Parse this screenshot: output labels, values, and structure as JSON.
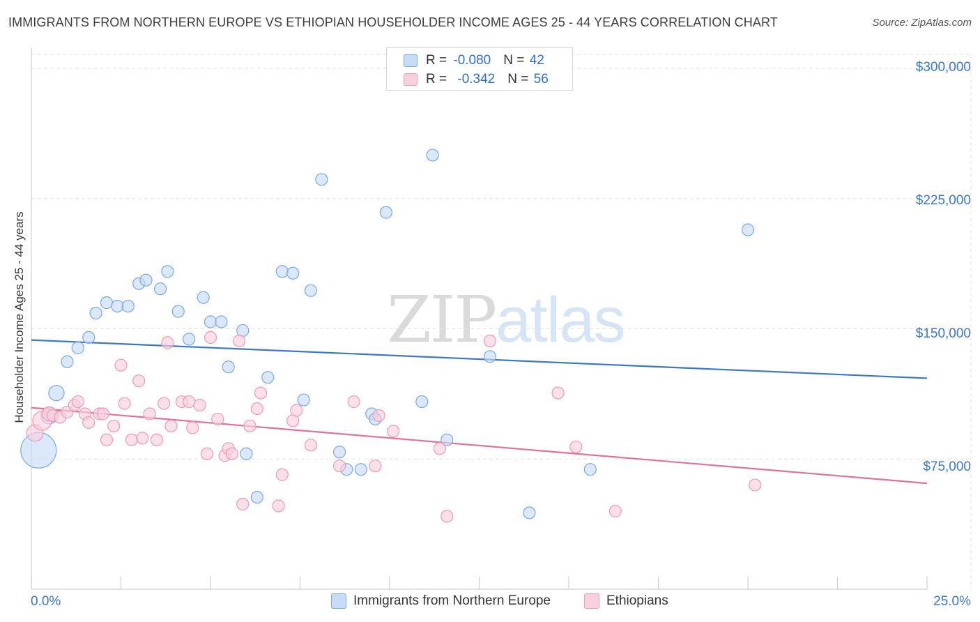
{
  "title": "IMMIGRANTS FROM NORTHERN EUROPE VS ETHIOPIAN HOUSEHOLDER INCOME AGES 25 - 44 YEARS CORRELATION CHART",
  "source": "Source: ZipAtlas.com",
  "legend_top": [
    {
      "r_label": "R = ",
      "r_value": "-0.080",
      "n_label": "N = ",
      "n_value": "42"
    },
    {
      "r_label": "R = ",
      "r_value": "-0.342",
      "n_label": "N = ",
      "n_value": "56"
    }
  ],
  "legend_bottom": [
    "Immigrants from Northern Europe",
    "Ethiopians"
  ],
  "watermark": {
    "zip": "ZIP",
    "atlas": "atlas"
  },
  "colors": {
    "blue": "#3a77c8",
    "blue_fill": "#c6dcf7",
    "pink": "#e4709a",
    "pink_fill": "#f9d0dd"
  },
  "chart_data": {
    "type": "scatter",
    "title": "IMMIGRANTS FROM NORTHERN EUROPE VS ETHIOPIAN HOUSEHOLDER INCOME AGES 25 - 44 YEARS CORRELATION CHART",
    "xlabel": "",
    "ylabel": "Householder Income Ages 25 - 44 years",
    "xlim": [
      0,
      25
    ],
    "ylim": [
      0,
      308000
    ],
    "x_tick_labels": [
      "0.0%",
      "25.0%"
    ],
    "y_ticks": [
      75000,
      150000,
      225000,
      300000
    ],
    "y_tick_labels": [
      "$75,000",
      "$150,000",
      "$225,000",
      "$300,000"
    ],
    "grid": true,
    "series": [
      {
        "name": "Immigrants from Northern Europe",
        "r": -0.08,
        "n": 42,
        "trend": {
          "x": [
            0,
            25
          ],
          "y": [
            143500,
            121500
          ]
        },
        "points": [
          {
            "x": 0.2,
            "y": 80000,
            "s": 3
          },
          {
            "x": 0.5,
            "y": 100000,
            "s": 1.4
          },
          {
            "x": 0.7,
            "y": 113000,
            "s": 1.3
          },
          {
            "x": 1.0,
            "y": 131000,
            "s": 1
          },
          {
            "x": 1.3,
            "y": 139000,
            "s": 1
          },
          {
            "x": 1.6,
            "y": 145000,
            "s": 1
          },
          {
            "x": 1.8,
            "y": 159000,
            "s": 1
          },
          {
            "x": 2.1,
            "y": 165000,
            "s": 1
          },
          {
            "x": 2.4,
            "y": 163000,
            "s": 1
          },
          {
            "x": 2.7,
            "y": 163000,
            "s": 1
          },
          {
            "x": 3.0,
            "y": 176000,
            "s": 1
          },
          {
            "x": 3.2,
            "y": 178000,
            "s": 1
          },
          {
            "x": 3.6,
            "y": 173000,
            "s": 1
          },
          {
            "x": 3.8,
            "y": 183000,
            "s": 1
          },
          {
            "x": 4.1,
            "y": 160000,
            "s": 1
          },
          {
            "x": 4.4,
            "y": 144000,
            "s": 1
          },
          {
            "x": 4.8,
            "y": 168000,
            "s": 1
          },
          {
            "x": 5.0,
            "y": 154000,
            "s": 1
          },
          {
            "x": 5.3,
            "y": 154000,
            "s": 1
          },
          {
            "x": 5.5,
            "y": 128000,
            "s": 1
          },
          {
            "x": 5.9,
            "y": 149000,
            "s": 1
          },
          {
            "x": 6.0,
            "y": 78000,
            "s": 1
          },
          {
            "x": 6.3,
            "y": 53000,
            "s": 1
          },
          {
            "x": 6.6,
            "y": 122000,
            "s": 1
          },
          {
            "x": 7.0,
            "y": 183000,
            "s": 1
          },
          {
            "x": 7.3,
            "y": 182000,
            "s": 1
          },
          {
            "x": 7.6,
            "y": 109000,
            "s": 1
          },
          {
            "x": 7.8,
            "y": 172000,
            "s": 1
          },
          {
            "x": 8.1,
            "y": 236000,
            "s": 1
          },
          {
            "x": 8.6,
            "y": 79000,
            "s": 1
          },
          {
            "x": 8.8,
            "y": 69000,
            "s": 1
          },
          {
            "x": 9.2,
            "y": 69000,
            "s": 1
          },
          {
            "x": 9.5,
            "y": 101000,
            "s": 1
          },
          {
            "x": 9.6,
            "y": 98000,
            "s": 1
          },
          {
            "x": 9.9,
            "y": 217000,
            "s": 1
          },
          {
            "x": 10.9,
            "y": 108000,
            "s": 1
          },
          {
            "x": 11.2,
            "y": 250000,
            "s": 1
          },
          {
            "x": 11.6,
            "y": 86000,
            "s": 1
          },
          {
            "x": 12.8,
            "y": 134000,
            "s": 1
          },
          {
            "x": 13.9,
            "y": 44000,
            "s": 1
          },
          {
            "x": 15.6,
            "y": 69000,
            "s": 1
          },
          {
            "x": 20.0,
            "y": 207000,
            "s": 1
          }
        ]
      },
      {
        "name": "Ethiopians",
        "r": -0.342,
        "n": 56,
        "trend": {
          "x": [
            0,
            25
          ],
          "y": [
            104500,
            61000
          ]
        },
        "points": [
          {
            "x": 0.1,
            "y": 90000,
            "s": 1.4
          },
          {
            "x": 0.3,
            "y": 97000,
            "s": 1.6
          },
          {
            "x": 0.5,
            "y": 101000,
            "s": 1.2
          },
          {
            "x": 0.6,
            "y": 100000,
            "s": 1
          },
          {
            "x": 0.8,
            "y": 99000,
            "s": 1
          },
          {
            "x": 1.0,
            "y": 102000,
            "s": 1
          },
          {
            "x": 1.2,
            "y": 106000,
            "s": 1
          },
          {
            "x": 1.3,
            "y": 108000,
            "s": 1
          },
          {
            "x": 1.5,
            "y": 101000,
            "s": 1
          },
          {
            "x": 1.6,
            "y": 96000,
            "s": 1
          },
          {
            "x": 1.9,
            "y": 101000,
            "s": 1
          },
          {
            "x": 2.0,
            "y": 101000,
            "s": 1
          },
          {
            "x": 2.1,
            "y": 86000,
            "s": 1
          },
          {
            "x": 2.3,
            "y": 94000,
            "s": 1
          },
          {
            "x": 2.5,
            "y": 129000,
            "s": 1
          },
          {
            "x": 2.6,
            "y": 107000,
            "s": 1
          },
          {
            "x": 2.8,
            "y": 86000,
            "s": 1
          },
          {
            "x": 3.0,
            "y": 120000,
            "s": 1
          },
          {
            "x": 3.1,
            "y": 87000,
            "s": 1
          },
          {
            "x": 3.3,
            "y": 101000,
            "s": 1
          },
          {
            "x": 3.5,
            "y": 86000,
            "s": 1
          },
          {
            "x": 3.7,
            "y": 107000,
            "s": 1
          },
          {
            "x": 3.8,
            "y": 142000,
            "s": 1
          },
          {
            "x": 3.9,
            "y": 94000,
            "s": 1
          },
          {
            "x": 4.2,
            "y": 108000,
            "s": 1
          },
          {
            "x": 4.4,
            "y": 108000,
            "s": 1
          },
          {
            "x": 4.5,
            "y": 93000,
            "s": 1
          },
          {
            "x": 4.7,
            "y": 106000,
            "s": 1
          },
          {
            "x": 4.9,
            "y": 78000,
            "s": 1
          },
          {
            "x": 5.0,
            "y": 145000,
            "s": 1
          },
          {
            "x": 5.2,
            "y": 98000,
            "s": 1
          },
          {
            "x": 5.4,
            "y": 77000,
            "s": 1
          },
          {
            "x": 5.5,
            "y": 81000,
            "s": 1
          },
          {
            "x": 5.6,
            "y": 78000,
            "s": 1
          },
          {
            "x": 5.8,
            "y": 143000,
            "s": 1
          },
          {
            "x": 5.9,
            "y": 49000,
            "s": 1
          },
          {
            "x": 6.1,
            "y": 94000,
            "s": 1
          },
          {
            "x": 6.3,
            "y": 104000,
            "s": 1
          },
          {
            "x": 6.4,
            "y": 113000,
            "s": 1
          },
          {
            "x": 6.9,
            "y": 48000,
            "s": 1
          },
          {
            "x": 7.0,
            "y": 66000,
            "s": 1
          },
          {
            "x": 7.3,
            "y": 97000,
            "s": 1
          },
          {
            "x": 7.4,
            "y": 103000,
            "s": 1
          },
          {
            "x": 7.8,
            "y": 83000,
            "s": 1
          },
          {
            "x": 8.6,
            "y": 71000,
            "s": 1
          },
          {
            "x": 9.0,
            "y": 108000,
            "s": 1
          },
          {
            "x": 9.6,
            "y": 71000,
            "s": 1
          },
          {
            "x": 9.7,
            "y": 100000,
            "s": 1
          },
          {
            "x": 10.1,
            "y": 91000,
            "s": 1
          },
          {
            "x": 11.4,
            "y": 81000,
            "s": 1
          },
          {
            "x": 11.6,
            "y": 42000,
            "s": 1
          },
          {
            "x": 12.8,
            "y": 143000,
            "s": 1
          },
          {
            "x": 14.7,
            "y": 113000,
            "s": 1
          },
          {
            "x": 15.2,
            "y": 82000,
            "s": 1
          },
          {
            "x": 16.3,
            "y": 45000,
            "s": 1
          },
          {
            "x": 20.2,
            "y": 60000,
            "s": 1
          }
        ]
      }
    ]
  }
}
